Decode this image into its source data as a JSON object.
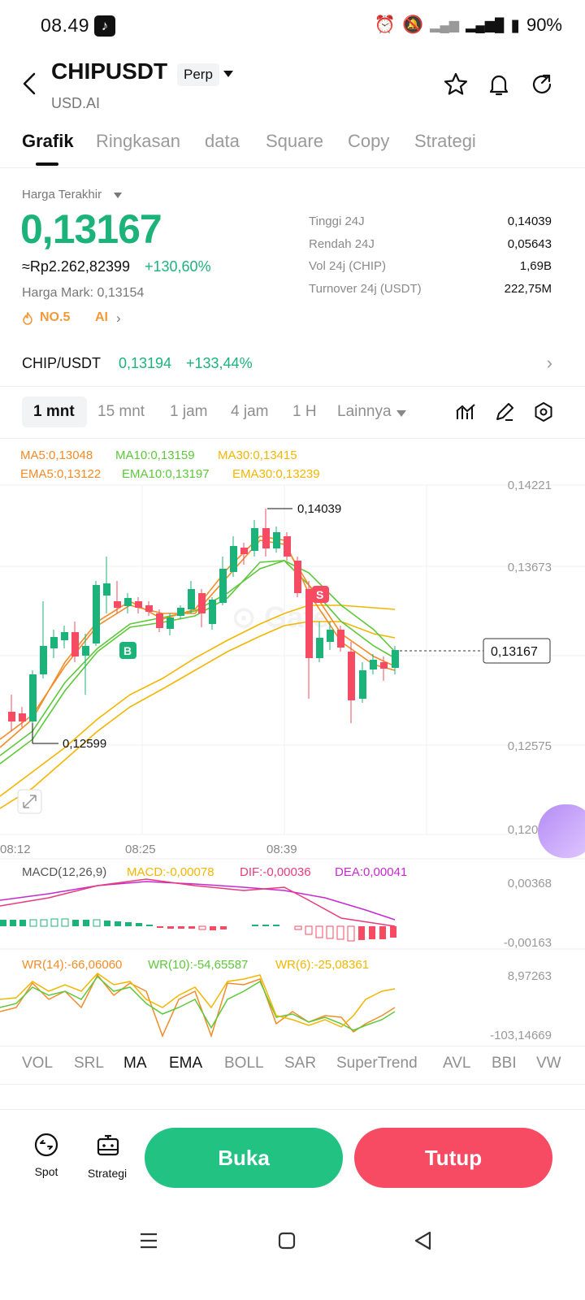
{
  "status_bar": {
    "time": "08.49",
    "battery": "90%"
  },
  "header": {
    "symbol": "CHIPUSDT",
    "tag": "Perp",
    "sub": "USD.AI"
  },
  "tabs": [
    {
      "label": "Grafik"
    },
    {
      "label": "Ringkasan"
    },
    {
      "label": "data"
    },
    {
      "label": "Square"
    },
    {
      "label": "Copy"
    },
    {
      "label": "Strategi"
    }
  ],
  "price": {
    "last_label": "Harga Terakhir",
    "last": "0,13167",
    "idr": "≈Rp2.262,82399",
    "change_pct": "+130,60%",
    "mark": "Harga Mark: 0,13154",
    "rank": "NO.5",
    "ai": "AI"
  },
  "stats": [
    {
      "label": "Tinggi 24J",
      "value": "0,14039"
    },
    {
      "label": "Rendah 24J",
      "value": "0,05643"
    },
    {
      "label": "Vol 24j (CHIP)",
      "value": "1,69B"
    },
    {
      "label": "Turnover 24j (USDT)",
      "value": "222,75M"
    }
  ],
  "pair": {
    "name": "CHIP/USDT",
    "price": "0,13194",
    "pct": "+133,44%"
  },
  "timeframes": [
    {
      "label": "1 mnt"
    },
    {
      "label": "15 mnt"
    },
    {
      "label": "1 jam"
    },
    {
      "label": "4 jam"
    },
    {
      "label": "1 H"
    },
    {
      "label": "Lainnya"
    }
  ],
  "ma_legend": {
    "ma5": "MA5:0,13048",
    "ma10": "MA10:0,13159",
    "ma30": "MA30:0,13415",
    "ema5": "EMA5:0,13122",
    "ema10": "EMA10:0,13197",
    "ema30": "EMA30:0,13239"
  },
  "price_axis": [
    "0,14221",
    "0,13673",
    "0,12575",
    "0,12026"
  ],
  "high_marker": "0,14039",
  "low_marker": "0,12599",
  "current_price_tag": "0,13167",
  "trade_markers": {
    "buy": "B",
    "sell": "S"
  },
  "time_axis": [
    "08:12",
    "08:25",
    "08:39"
  ],
  "macd": {
    "title": "MACD(12,26,9)",
    "macd": "MACD:-0,00078",
    "dif": "DIF:-0,00036",
    "dea": "DEA:0,00041",
    "axis_top": "0,00368",
    "axis_bottom": "-0,00163"
  },
  "wr": {
    "wr14": "WR(14):-66,06060",
    "wr10": "WR(10):-54,65587",
    "wr6": "WR(6):-25,08361",
    "axis_top": "8,97263",
    "axis_bottom": "-103,14669"
  },
  "indicator_tabs": [
    {
      "label": "VOL"
    },
    {
      "label": "SRL"
    },
    {
      "label": "MA"
    },
    {
      "label": "EMA"
    },
    {
      "label": "BOLL"
    },
    {
      "label": "SAR"
    },
    {
      "label": "SuperTrend"
    },
    {
      "label": "AVL"
    },
    {
      "label": "BBI"
    },
    {
      "label": "VW"
    }
  ],
  "bottom": {
    "spot": "Spot",
    "strategy": "Strategi",
    "buy": "Buka",
    "sell": "Tutup"
  },
  "colors": {
    "green": "#1cb37a",
    "red": "#f74b63",
    "ma5": "#f28c28",
    "ma10": "#5dc83a",
    "ma30": "#f2b600"
  }
}
